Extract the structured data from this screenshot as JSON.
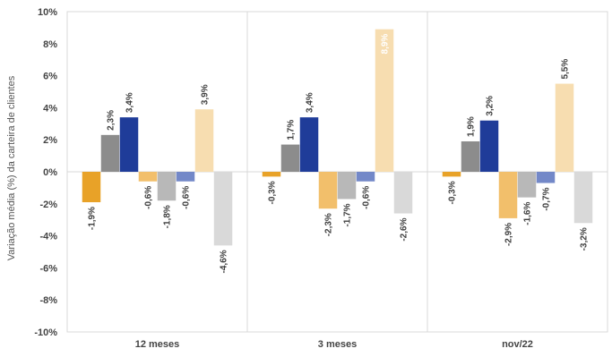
{
  "chart_data": {
    "type": "bar",
    "ylabel": "Variação média (%) da carteira de clientes",
    "ylim": [
      -10,
      10
    ],
    "y_ticks": [
      "10%",
      "8%",
      "6%",
      "4%",
      "2%",
      "0%",
      "-2%",
      "-4%",
      "-6%",
      "-8%",
      "-10%"
    ],
    "categories": [
      "12 meses",
      "3 meses",
      "nov/22"
    ],
    "grid": "vertical separators between categories",
    "legend": "none",
    "series": [
      {
        "color": "#E8A228",
        "values": [
          -1.9,
          -0.3,
          -0.3
        ],
        "labels": [
          "-1,9%",
          "-0,3%",
          "-0,3%"
        ]
      },
      {
        "color": "#8C8C8C",
        "values": [
          2.3,
          1.7,
          1.9
        ],
        "labels": [
          "2,3%",
          "1,7%",
          "1,9%"
        ]
      },
      {
        "color": "#1F3C99",
        "values": [
          3.4,
          3.4,
          3.2
        ],
        "labels": [
          "3,4%",
          "3,4%",
          "3,2%"
        ]
      },
      {
        "color": "#F2BF6B",
        "values": [
          -0.6,
          -2.3,
          -2.9
        ],
        "labels": [
          "-0,6%",
          "-2,3%",
          "-2,9%"
        ]
      },
      {
        "color": "#B8B8B8",
        "values": [
          -1.8,
          -1.7,
          -1.6
        ],
        "labels": [
          "-1,8%",
          "-1,7%",
          "-1,6%"
        ]
      },
      {
        "color": "#7388C8",
        "values": [
          -0.6,
          -0.6,
          -0.7
        ],
        "labels": [
          "-0,6%",
          "-0,6%",
          "-0,7%"
        ]
      },
      {
        "color": "#F7DDB0",
        "values": [
          3.9,
          8.9,
          5.5
        ],
        "labels": [
          "3,9%",
          "8,9%",
          "5,5%"
        ]
      },
      {
        "color": "#D9D9D9",
        "values": [
          -4.6,
          -2.6,
          -3.2
        ],
        "labels": [
          "-4,6%",
          "-2,6%",
          "-3,2%"
        ]
      }
    ]
  }
}
